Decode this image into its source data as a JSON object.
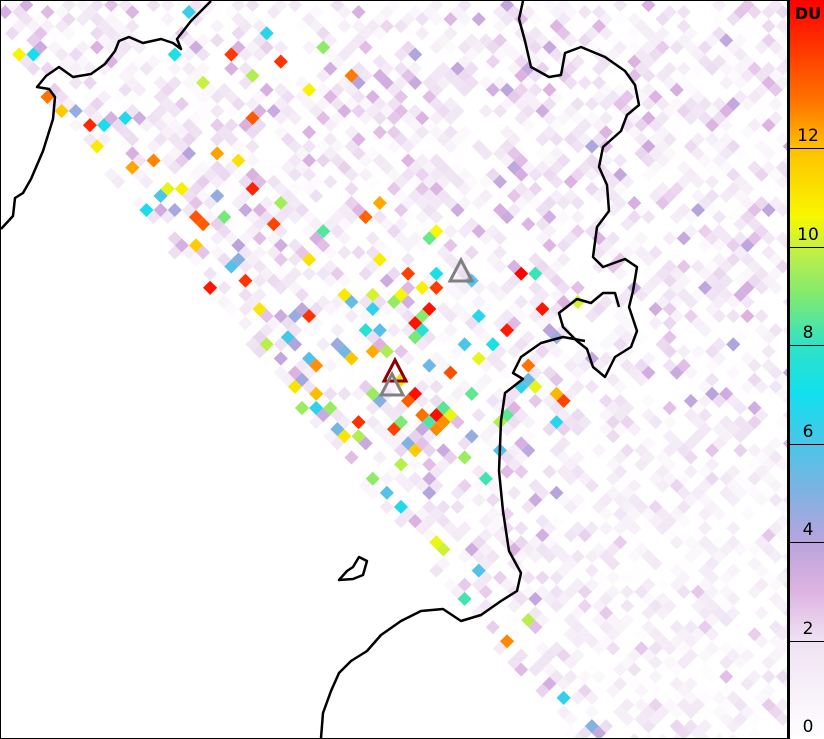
{
  "colorbar": {
    "unit": "DU",
    "ticks": [
      "0",
      "2",
      "4",
      "6",
      "8",
      "10",
      "12"
    ],
    "range": [
      0,
      15
    ],
    "stops": [
      [
        0,
        "#ffffff"
      ],
      [
        2,
        "#efe2f3"
      ],
      [
        3,
        "#deb3e2"
      ],
      [
        4,
        "#b8a4dd"
      ],
      [
        5,
        "#80b2e2"
      ],
      [
        6,
        "#48c6e8"
      ],
      [
        7,
        "#12e0ee"
      ],
      [
        8,
        "#30e2c4"
      ],
      [
        9,
        "#80ea70"
      ],
      [
        10,
        "#c8f040"
      ],
      [
        10.6,
        "#f8f800"
      ],
      [
        12,
        "#ffc000"
      ],
      [
        13,
        "#ff7000"
      ],
      [
        15,
        "#ff0000"
      ]
    ]
  },
  "markers": [
    {
      "name": "volcano-marker-1",
      "color": "#808080"
    },
    {
      "name": "volcano-marker-2",
      "color": "#8b0000"
    },
    {
      "name": "volcano-marker-3",
      "color": "#808080"
    }
  ],
  "coastline_color": "#000000"
}
